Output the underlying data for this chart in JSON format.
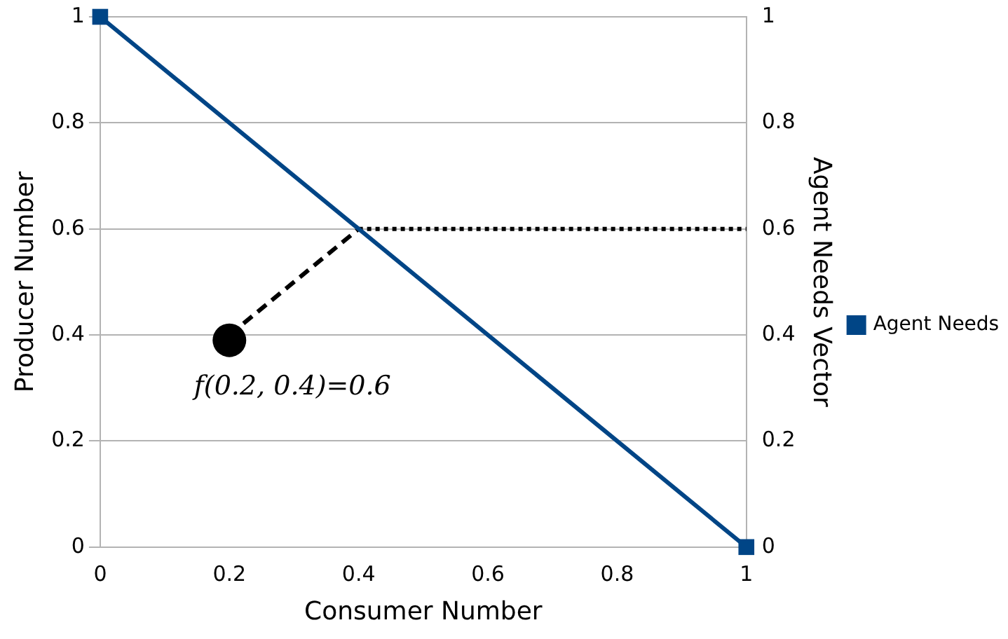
{
  "chart_data": {
    "type": "line",
    "xlabel": "Consumer Number",
    "ylabel": "Producer Number",
    "y2label": "Agent Needs Vector",
    "xlim": [
      0,
      1
    ],
    "xticks": [
      0,
      0.2,
      0.4,
      0.6,
      0.8,
      1
    ],
    "ylim": [
      0,
      1
    ],
    "yticks": [
      0,
      0.2,
      0.4,
      0.6,
      0.8,
      1
    ],
    "y2lim": [
      0,
      1
    ],
    "y2ticks": [
      0,
      0.2,
      0.4,
      0.6,
      0.8,
      1
    ],
    "grid": "y",
    "legend": "right",
    "series": [
      {
        "name": "Agent Needs",
        "type": "line",
        "color": "#004586",
        "x": [
          0,
          1
        ],
        "values": [
          1,
          0
        ],
        "marker": "square",
        "line_style": "solid"
      },
      {
        "type": "line",
        "color": "#000000",
        "x": [
          0.2,
          0.4
        ],
        "values": [
          0.4,
          0.6
        ],
        "marker": "none",
        "line_style": "dashed"
      },
      {
        "type": "line",
        "color": "#000000",
        "x": [
          0.4,
          1
        ],
        "values": [
          0.6,
          0.6
        ],
        "marker": "none",
        "line_style": "dotted"
      },
      {
        "type": "scatter",
        "color": "#000000",
        "x": [
          0.2
        ],
        "values": [
          0.39
        ],
        "marker": "circle"
      }
    ],
    "annotations": [
      {
        "text": "f(0.2, 0.4)=0.6",
        "x": 0.2,
        "y": 0.39
      }
    ]
  }
}
